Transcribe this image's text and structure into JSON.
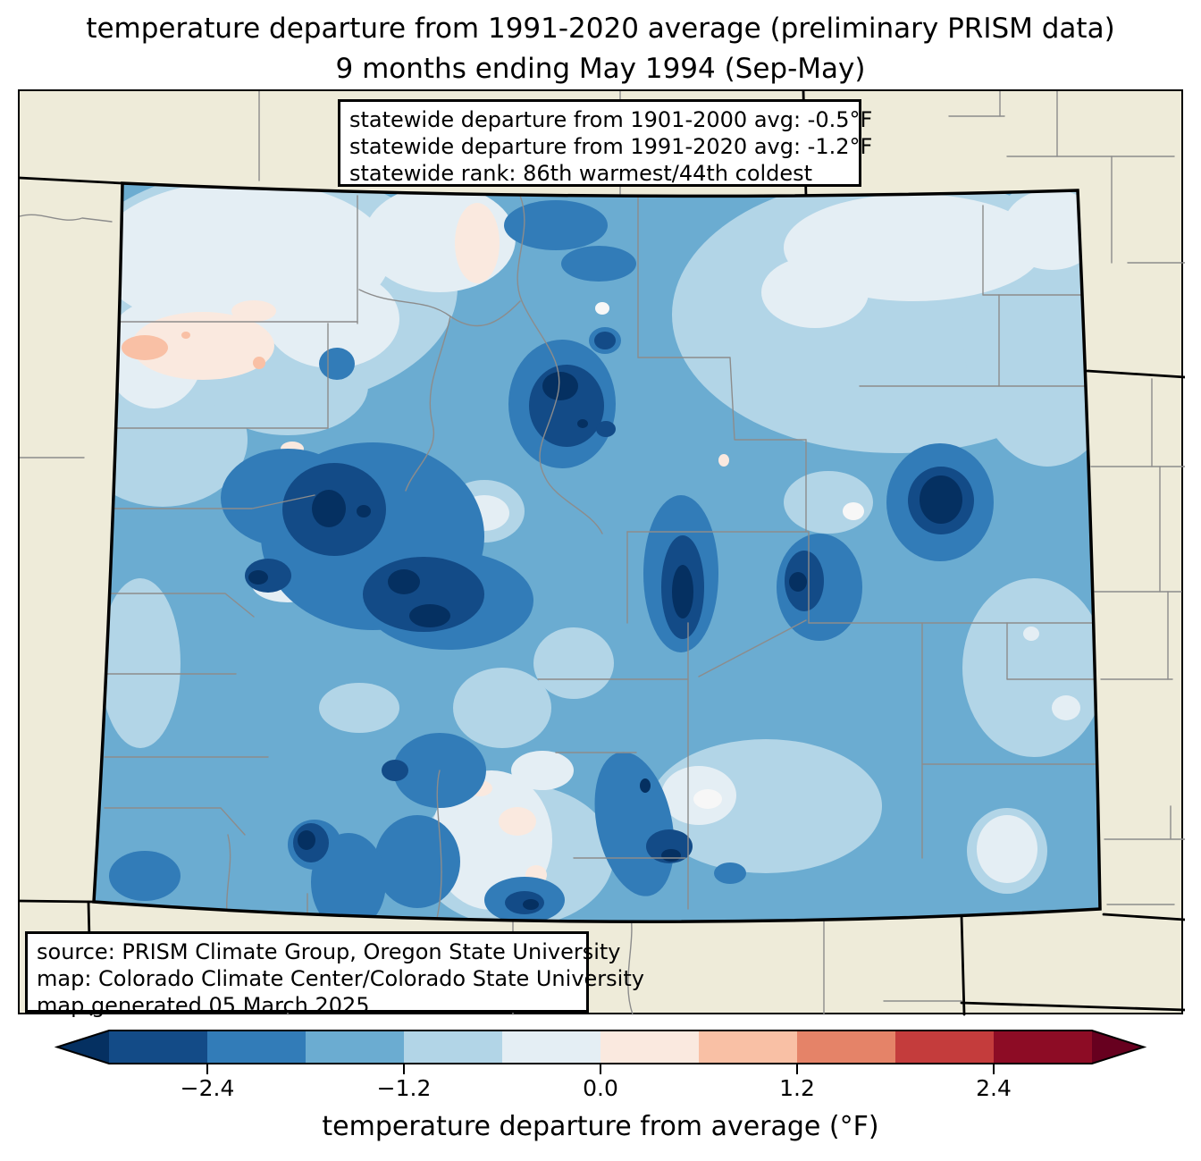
{
  "title": {
    "line1": "temperature departure from 1991-2020 average (preliminary PRISM data)",
    "line2": "9 months ending May 1994 (Sep-May)"
  },
  "stats_box": {
    "lines": [
      "statewide departure from 1901-2000 avg: -0.5°F",
      "statewide departure from 1991-2020 avg: -1.2°F",
      "statewide rank: 86th warmest/44th coldest"
    ]
  },
  "source_box": {
    "lines": [
      "source: PRISM Climate Group, Oregon State University",
      "map: Colorado Climate Center/Colorado State University",
      "map generated 05 March 2025"
    ]
  },
  "colorbar": {
    "label": "temperature departure from average (°F)",
    "ticks": [
      "−2.4",
      "−1.2",
      "0.0",
      "1.2",
      "2.4"
    ],
    "tick_values": [
      -2.4,
      -1.2,
      0.0,
      1.2,
      2.4
    ],
    "boundaries": [
      -3.0,
      -2.4,
      -1.8,
      -1.2,
      -0.6,
      0.0,
      0.6,
      1.2,
      1.8,
      2.4,
      3.0
    ],
    "units": "°F"
  },
  "colors": {
    "segments": [
      "#134b87",
      "#327cb8",
      "#6bacd1",
      "#b2d5e7",
      "#e4eef4",
      "#fae9df",
      "#f9c0a5",
      "#e58368",
      "#c43c3c",
      "#8d0c25"
    ],
    "under": "#053061",
    "over": "#67001f",
    "beige": "#eeebd9",
    "county_line": "#8c8c8c",
    "state_line": "#000000"
  },
  "chart_data": {
    "type": "heatmap",
    "title": "temperature departure from 1991-2020 average (preliminary PRISM data), 9 months ending May 1994 (Sep-May)",
    "region": "Colorado",
    "colorbar_label": "temperature departure from average (°F)",
    "colorbar_range": [
      -3.0,
      3.0
    ],
    "colorbar_step": 0.6,
    "statewide_departure_1901_2000_F": -0.5,
    "statewide_departure_1991_2020_F": -1.2,
    "statewide_rank": "86th warmest/44th coldest",
    "dominant_anomaly": "negative (below average, blues) across nearly all of Colorado; coldest pockets below -3.0°F in central mountains, Sangre de Cristo range, and northeast plains; few near-zero/slightly positive spots in far northwest"
  }
}
